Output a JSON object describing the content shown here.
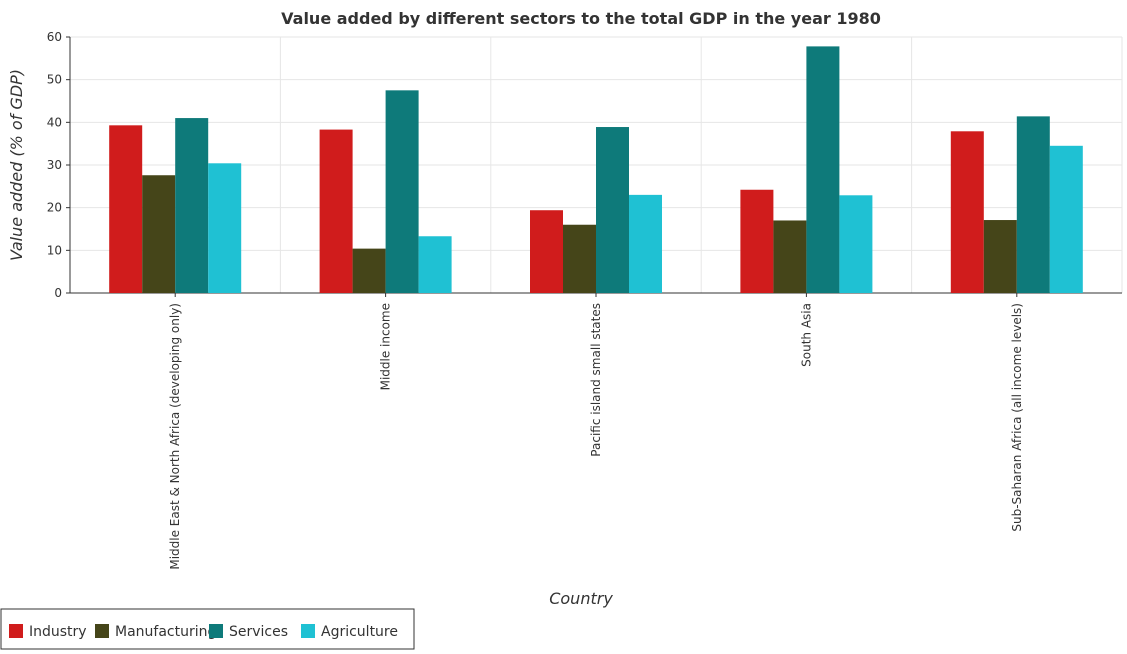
{
  "chart_data": {
    "type": "bar",
    "title": "Value added by different sectors to the total GDP in the year 1980",
    "xlabel": "Country",
    "ylabel": "Value added (% of GDP)",
    "ylim": [
      0,
      60
    ],
    "yticks": [
      0,
      10,
      20,
      30,
      40,
      50,
      60
    ],
    "grid": true,
    "legend_position": "bottom-left",
    "categories": [
      "Middle East & North Africa (developing only)",
      "Middle income",
      "Pacific island small states",
      "South Asia",
      "Sub-Saharan Africa (all income levels)"
    ],
    "series": [
      {
        "name": "Industry",
        "color": "#d01c1c",
        "values": [
          39.3,
          38.3,
          19.4,
          24.2,
          37.9
        ]
      },
      {
        "name": "Manufacturing",
        "color": "#454519",
        "values": [
          27.6,
          10.4,
          16.0,
          17.0,
          17.1
        ]
      },
      {
        "name": "Services",
        "color": "#0e7a7a",
        "values": [
          41.0,
          47.5,
          38.9,
          57.8,
          41.4
        ]
      },
      {
        "name": "Agriculture",
        "color": "#1fc1d3",
        "values": [
          30.4,
          13.3,
          23.0,
          22.9,
          34.5
        ]
      }
    ]
  }
}
